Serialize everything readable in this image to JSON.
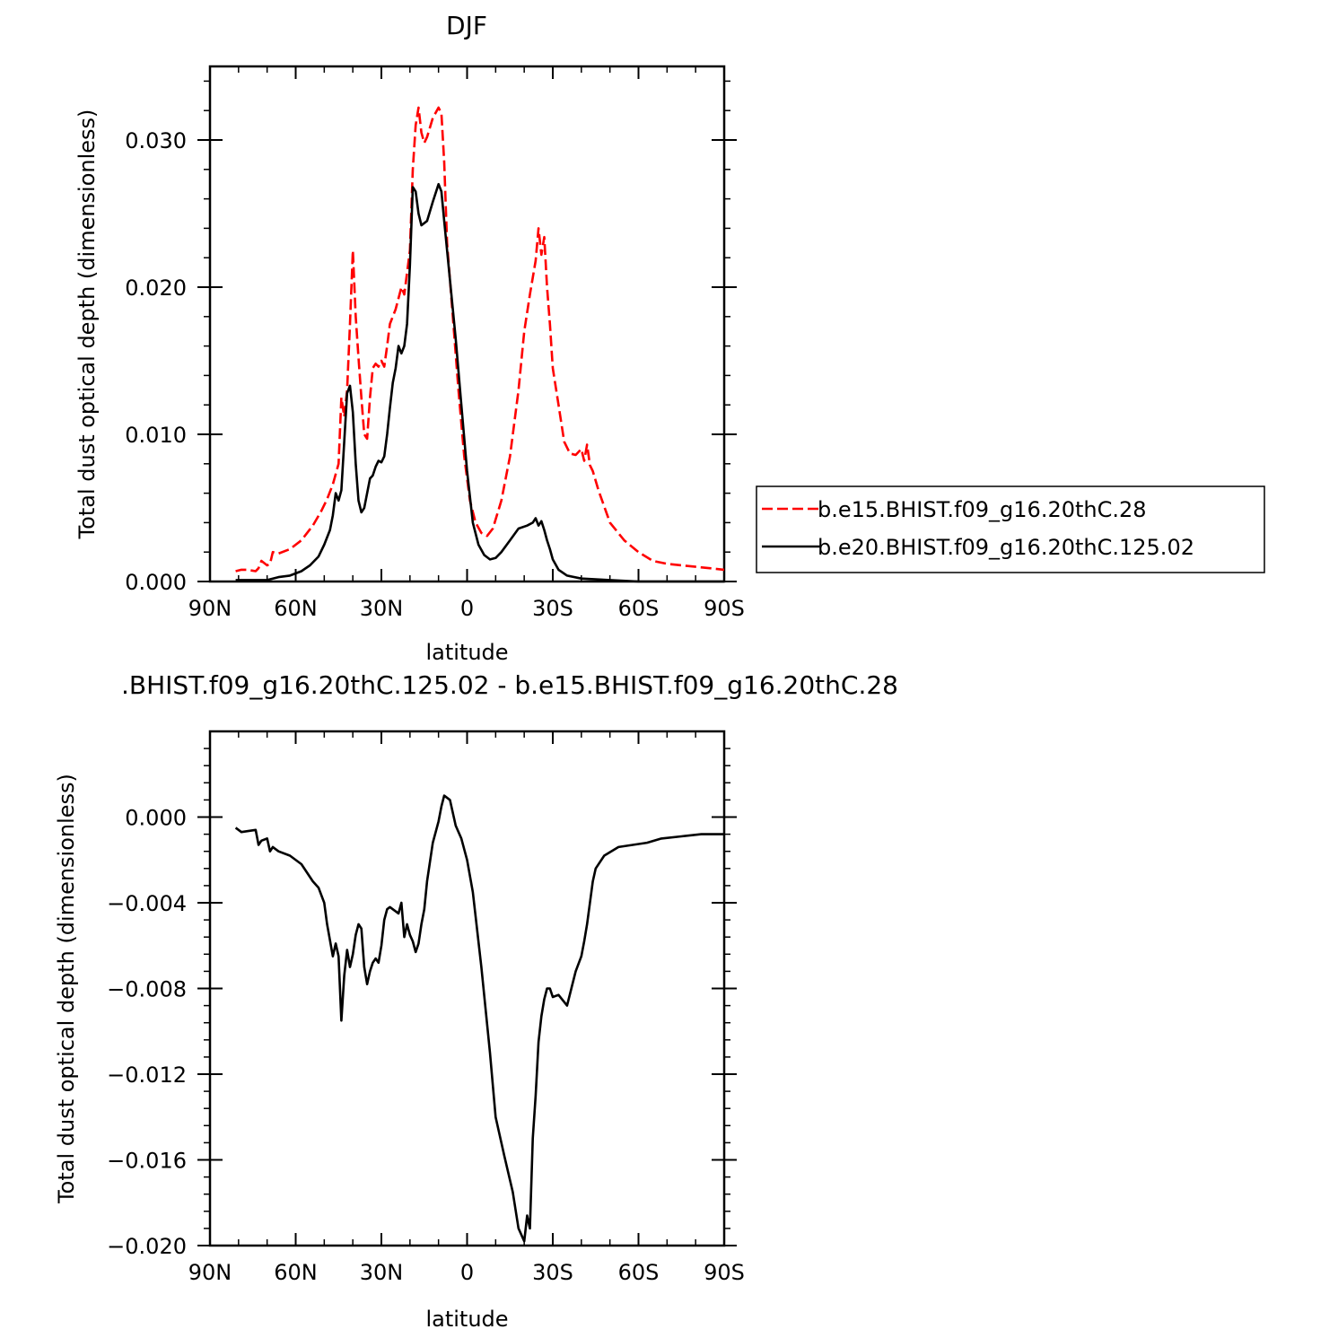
{
  "chart_data": [
    {
      "type": "line",
      "title": "DJF",
      "xlabel": "latitude",
      "ylabel": "Total dust optical depth (dimensionless)",
      "xlim": [
        90,
        -90
      ],
      "ylim": [
        0.0,
        0.035
      ],
      "x_ticks": [
        90,
        60,
        30,
        0,
        -30,
        -60,
        -90
      ],
      "x_tick_labels": [
        "90N",
        "60N",
        "30N",
        "0",
        "30S",
        "60S",
        "90S"
      ],
      "y_ticks": [
        0.0,
        0.01,
        0.02,
        0.03
      ],
      "y_tick_labels": [
        "0.000",
        "0.010",
        "0.020",
        "0.030"
      ],
      "grid": false,
      "legend_position": "right",
      "series": [
        {
          "name": "b.e15.BHIST.f09_g16.20thC.28",
          "color": "#ff0000",
          "dash": "dashed",
          "x": [
            81,
            79,
            77,
            74,
            73,
            72,
            70,
            69,
            68,
            66,
            62,
            58,
            54,
            51,
            49,
            47,
            45,
            44,
            43,
            42,
            41,
            40,
            39,
            38,
            37,
            36,
            35,
            34,
            33,
            32,
            31,
            30,
            29,
            28,
            27,
            25,
            23,
            22,
            20,
            19,
            18,
            17,
            16,
            15,
            14,
            12,
            10,
            9,
            8,
            7,
            5,
            3,
            1,
            -1,
            -3,
            -5,
            -7,
            -9,
            -12,
            -15,
            -18,
            -20,
            -22,
            -24,
            -25,
            -26,
            -27,
            -28,
            -29,
            -30,
            -32,
            -34,
            -36,
            -38,
            -40,
            -41,
            -42,
            -43,
            -44,
            -46,
            -50,
            -55,
            -60,
            -65,
            -70,
            -75,
            -80,
            -85,
            -90
          ],
          "y": [
            0.0007,
            0.0008,
            0.0008,
            0.0007,
            0.0009,
            0.0014,
            0.0011,
            0.0012,
            0.002,
            0.0019,
            0.0022,
            0.0028,
            0.0038,
            0.0048,
            0.0056,
            0.0066,
            0.008,
            0.0125,
            0.0112,
            0.013,
            0.0175,
            0.0225,
            0.018,
            0.0152,
            0.0125,
            0.01,
            0.0097,
            0.0125,
            0.0145,
            0.0148,
            0.0146,
            0.015,
            0.0146,
            0.016,
            0.0175,
            0.0185,
            0.02,
            0.0195,
            0.0225,
            0.028,
            0.031,
            0.0322,
            0.0305,
            0.0298,
            0.0302,
            0.0315,
            0.0322,
            0.0318,
            0.0285,
            0.023,
            0.018,
            0.013,
            0.0085,
            0.0055,
            0.004,
            0.0033,
            0.0031,
            0.0036,
            0.0055,
            0.0085,
            0.013,
            0.017,
            0.0195,
            0.0218,
            0.024,
            0.0222,
            0.0234,
            0.02,
            0.0175,
            0.0145,
            0.012,
            0.0095,
            0.0087,
            0.0086,
            0.009,
            0.0082,
            0.0093,
            0.0079,
            0.0075,
            0.0062,
            0.004,
            0.0028,
            0.002,
            0.0014,
            0.0012,
            0.0011,
            0.001,
            0.0009,
            0.0008
          ]
        },
        {
          "name": "b.e20.BHIST.f09_g16.20thC.125.02",
          "color": "#000000",
          "dash": "solid",
          "x": [
            81,
            78,
            74,
            70,
            66,
            62,
            58,
            55,
            52,
            50,
            48,
            47,
            46,
            45,
            44,
            43,
            42,
            41,
            40,
            39,
            38,
            37,
            36,
            35,
            34,
            33,
            32,
            31,
            30,
            29,
            28,
            27,
            26,
            25,
            24,
            23,
            22,
            21,
            20,
            19,
            18,
            17,
            16,
            14,
            12,
            10,
            9,
            8,
            6,
            4,
            2,
            0,
            -2,
            -4,
            -6,
            -8,
            -10,
            -12,
            -15,
            -18,
            -21,
            -23,
            -24,
            -25,
            -26,
            -27,
            -28,
            -29,
            -30,
            -32,
            -35,
            -40,
            -50,
            -60,
            -75,
            -90
          ],
          "y": [
            0.0001,
            0.0001,
            0.0001,
            0.0001,
            0.0003,
            0.0004,
            0.0007,
            0.0011,
            0.0017,
            0.0025,
            0.0035,
            0.0045,
            0.006,
            0.0055,
            0.0062,
            0.0095,
            0.0128,
            0.0133,
            0.0115,
            0.008,
            0.0055,
            0.0047,
            0.005,
            0.006,
            0.007,
            0.0072,
            0.0078,
            0.0082,
            0.0081,
            0.0085,
            0.01,
            0.0118,
            0.0135,
            0.0145,
            0.016,
            0.0155,
            0.016,
            0.0175,
            0.0215,
            0.0268,
            0.0265,
            0.025,
            0.0242,
            0.0245,
            0.0258,
            0.027,
            0.0265,
            0.0245,
            0.0205,
            0.0165,
            0.012,
            0.0075,
            0.004,
            0.0025,
            0.0018,
            0.0015,
            0.0016,
            0.002,
            0.0028,
            0.0036,
            0.0038,
            0.004,
            0.0043,
            0.0038,
            0.0041,
            0.0035,
            0.0028,
            0.0022,
            0.0015,
            0.0008,
            0.0004,
            0.0002,
            0.0001,
            0.0,
            0.0,
            0.0
          ]
        }
      ]
    },
    {
      "type": "line",
      "title": ".BHIST.f09_g16.20thC.125.02 - b.e15.BHIST.f09_g16.20thC.28",
      "xlabel": "latitude",
      "ylabel": "Total dust optical depth (dimensionless)",
      "xlim": [
        90,
        -90
      ],
      "ylim": [
        -0.02,
        0.004
      ],
      "x_ticks": [
        90,
        60,
        30,
        0,
        -30,
        -60,
        -90
      ],
      "x_tick_labels": [
        "90N",
        "60N",
        "30N",
        "0",
        "30S",
        "60S",
        "90S"
      ],
      "y_ticks": [
        0.0,
        -0.004,
        -0.008,
        -0.012,
        -0.016,
        -0.02
      ],
      "y_tick_labels": [
        "0.000",
        "−0.004",
        "−0.008",
        "−0.012",
        "−0.016",
        "−0.020"
      ],
      "grid": false,
      "series": [
        {
          "color": "#000000",
          "dash": "solid",
          "x": [
            81,
            79,
            74,
            73,
            72,
            70,
            69,
            68,
            66,
            62,
            58,
            54,
            52,
            50,
            49,
            47,
            46,
            45,
            44,
            43,
            42,
            41,
            40,
            39,
            38,
            37,
            36,
            35,
            34,
            33,
            32,
            31,
            30,
            29,
            28,
            27,
            26,
            24,
            23,
            22,
            21,
            20,
            19,
            18,
            17,
            16,
            15,
            14,
            12,
            10,
            9,
            8,
            6,
            4,
            2,
            0,
            -2,
            -5,
            -8,
            -10,
            -13,
            -16,
            -18,
            -20,
            -21,
            -22,
            -23,
            -24,
            -25,
            -26,
            -27,
            -28,
            -29,
            -30,
            -32,
            -35,
            -38,
            -40,
            -41,
            -42,
            -43,
            -44,
            -45,
            -48,
            -53,
            -58,
            -63,
            -68,
            -75,
            -82,
            -90
          ],
          "y": [
            -0.0005,
            -0.0007,
            -0.0006,
            -0.0013,
            -0.0011,
            -0.001,
            -0.0016,
            -0.0014,
            -0.0016,
            -0.0018,
            -0.0022,
            -0.003,
            -0.0033,
            -0.004,
            -0.005,
            -0.0065,
            -0.0059,
            -0.0065,
            -0.0095,
            -0.0074,
            -0.0062,
            -0.007,
            -0.0064,
            -0.0055,
            -0.005,
            -0.0052,
            -0.007,
            -0.0078,
            -0.0072,
            -0.0068,
            -0.0066,
            -0.0068,
            -0.006,
            -0.0048,
            -0.0043,
            -0.0042,
            -0.0043,
            -0.0045,
            -0.004,
            -0.0056,
            -0.005,
            -0.0055,
            -0.0058,
            -0.0063,
            -0.0059,
            -0.005,
            -0.0043,
            -0.003,
            -0.0012,
            -0.0002,
            0.0005,
            0.001,
            0.0008,
            -0.0004,
            -0.001,
            -0.002,
            -0.0035,
            -0.007,
            -0.011,
            -0.014,
            -0.0158,
            -0.0175,
            -0.0192,
            -0.0198,
            -0.0186,
            -0.0192,
            -0.015,
            -0.013,
            -0.0105,
            -0.0093,
            -0.0085,
            -0.008,
            -0.008,
            -0.0084,
            -0.0083,
            -0.0088,
            -0.0072,
            -0.0065,
            -0.0058,
            -0.005,
            -0.004,
            -0.003,
            -0.0024,
            -0.0018,
            -0.0014,
            -0.0013,
            -0.0012,
            -0.001,
            -0.0009,
            -0.0008,
            -0.0008
          ]
        }
      ]
    }
  ]
}
